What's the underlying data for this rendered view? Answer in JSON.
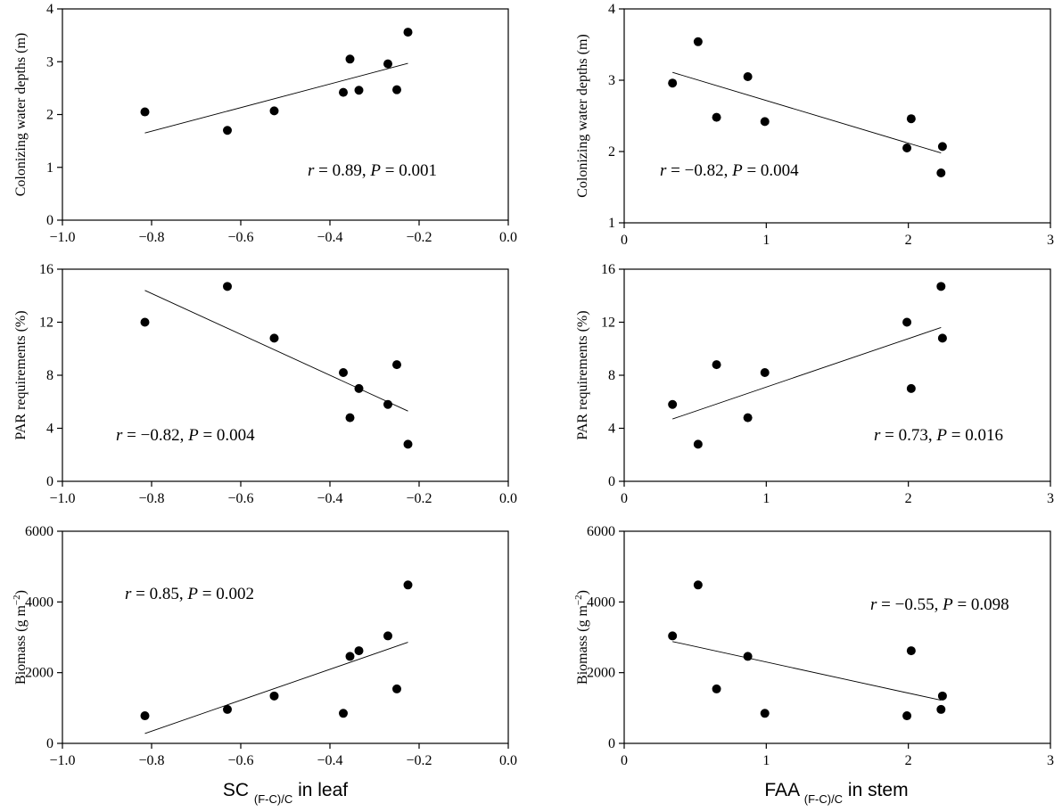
{
  "chart_data": [
    {
      "type": "scatter",
      "id": "p1",
      "ylabel": "Colonizing water depths (m)",
      "xlim": [
        -1.0,
        0.0
      ],
      "ylim": [
        0,
        4
      ],
      "xticks": [
        -1.0,
        -0.8,
        -0.6,
        -0.4,
        -0.2,
        0.0
      ],
      "yticks": [
        0,
        1,
        2,
        3,
        4
      ],
      "xtick_labels": [
        "−1.0",
        "−0.8",
        "−0.6",
        "−0.4",
        "−0.2",
        "0.0"
      ],
      "ytick_labels": [
        "0",
        "1",
        "2",
        "3",
        "4"
      ],
      "points": [
        [
          -0.815,
          2.05
        ],
        [
          -0.63,
          1.7
        ],
        [
          -0.525,
          2.07
        ],
        [
          -0.37,
          2.42
        ],
        [
          -0.355,
          3.05
        ],
        [
          -0.335,
          2.46
        ],
        [
          -0.27,
          2.96
        ],
        [
          -0.25,
          2.47
        ],
        [
          -0.225,
          3.56
        ]
      ],
      "fit_line": [
        [
          -0.815,
          1.65
        ],
        [
          -0.225,
          2.97
        ]
      ],
      "annotation": {
        "r_label": "r",
        "r_value": " = 0.89, ",
        "p_label": "P",
        "p_value": " = 0.001"
      }
    },
    {
      "type": "scatter",
      "id": "p2",
      "ylabel": "Colonizing water depths (m)",
      "xlim": [
        0,
        3
      ],
      "ylim": [
        1,
        4
      ],
      "xticks": [
        0,
        1,
        2,
        3
      ],
      "yticks": [
        1,
        2,
        3,
        4
      ],
      "xtick_labels": [
        "0",
        "1",
        "2",
        "3"
      ],
      "ytick_labels": [
        "1",
        "2",
        "3",
        "4"
      ],
      "points": [
        [
          0.34,
          2.96
        ],
        [
          0.52,
          3.54
        ],
        [
          0.65,
          2.48
        ],
        [
          0.87,
          3.05
        ],
        [
          0.99,
          2.42
        ],
        [
          1.99,
          2.05
        ],
        [
          2.02,
          2.46
        ],
        [
          2.24,
          2.07
        ],
        [
          2.23,
          1.7
        ]
      ],
      "fit_line": [
        [
          0.34,
          3.11
        ],
        [
          2.23,
          1.98
        ]
      ],
      "annotation": {
        "r_label": "r",
        "r_value": " = −0.82, ",
        "p_label": "P",
        "p_value": " = 0.004"
      }
    },
    {
      "type": "scatter",
      "id": "p3",
      "ylabel": "PAR requirements (%)",
      "xlim": [
        -1.0,
        0.0
      ],
      "ylim": [
        0,
        16
      ],
      "xticks": [
        -1.0,
        -0.8,
        -0.6,
        -0.4,
        -0.2,
        0.0
      ],
      "yticks": [
        0,
        4,
        8,
        12,
        16
      ],
      "xtick_labels": [
        "−1.0",
        "−0.8",
        "−0.6",
        "−0.4",
        "−0.2",
        "0.0"
      ],
      "ytick_labels": [
        "0",
        "4",
        "8",
        "12",
        "16"
      ],
      "points": [
        [
          -0.815,
          12.0
        ],
        [
          -0.63,
          14.7
        ],
        [
          -0.525,
          10.8
        ],
        [
          -0.37,
          8.2
        ],
        [
          -0.355,
          4.8
        ],
        [
          -0.335,
          7.0
        ],
        [
          -0.27,
          5.8
        ],
        [
          -0.25,
          8.8
        ],
        [
          -0.225,
          2.8
        ]
      ],
      "fit_line": [
        [
          -0.815,
          14.4
        ],
        [
          -0.225,
          5.3
        ]
      ],
      "annotation": {
        "r_label": "r",
        "r_value": " = −0.82, ",
        "p_label": "P",
        "p_value": " = 0.004"
      }
    },
    {
      "type": "scatter",
      "id": "p4",
      "ylabel": "PAR requirements (%)",
      "xlim": [
        0,
        3
      ],
      "ylim": [
        0,
        16
      ],
      "xticks": [
        0,
        1,
        2,
        3
      ],
      "yticks": [
        0,
        4,
        8,
        12,
        16
      ],
      "xtick_labels": [
        "0",
        "1",
        "2",
        "3"
      ],
      "ytick_labels": [
        "0",
        "4",
        "8",
        "12",
        "16"
      ],
      "points": [
        [
          0.34,
          5.8
        ],
        [
          0.52,
          2.8
        ],
        [
          0.65,
          8.8
        ],
        [
          0.87,
          4.8
        ],
        [
          0.99,
          8.2
        ],
        [
          1.99,
          12.0
        ],
        [
          2.02,
          7.0
        ],
        [
          2.23,
          14.7
        ],
        [
          2.24,
          10.8
        ]
      ],
      "fit_line": [
        [
          0.34,
          4.7
        ],
        [
          2.23,
          11.6
        ]
      ],
      "annotation": {
        "r_label": "r",
        "r_value": " = 0.73, ",
        "p_label": "P",
        "p_value": " = 0.016"
      }
    },
    {
      "type": "scatter",
      "id": "p5",
      "ylabel": "Biomass (g m",
      "ylabel_sup": "−2",
      "ylabel_end": ")",
      "xlabel": "SC",
      "xlabel_sub": "(F-C)/C",
      "xlabel_end": " in leaf",
      "xlim": [
        -1.0,
        0.0
      ],
      "ylim": [
        0,
        6000
      ],
      "xticks": [
        -1.0,
        -0.8,
        -0.6,
        -0.4,
        -0.2,
        0.0
      ],
      "yticks": [
        0,
        2000,
        4000,
        6000
      ],
      "xtick_labels": [
        "−1.0",
        "−0.8",
        "−0.6",
        "−0.4",
        "−0.2",
        "0.0"
      ],
      "ytick_labels": [
        "0",
        "2000",
        "4000",
        "6000"
      ],
      "points": [
        [
          -0.815,
          780
        ],
        [
          -0.63,
          960
        ],
        [
          -0.525,
          1340
        ],
        [
          -0.37,
          850
        ],
        [
          -0.355,
          2460
        ],
        [
          -0.335,
          2620
        ],
        [
          -0.27,
          3040
        ],
        [
          -0.25,
          1540
        ],
        [
          -0.225,
          4480
        ]
      ],
      "fit_line": [
        [
          -0.815,
          280
        ],
        [
          -0.225,
          2860
        ]
      ],
      "annotation": {
        "r_label": "r",
        "r_value": " = 0.85, ",
        "p_label": "P",
        "p_value": " = 0.002"
      }
    },
    {
      "type": "scatter",
      "id": "p6",
      "ylabel": "Biomass (g m",
      "ylabel_sup": "−2",
      "ylabel_end": ")",
      "xlabel": "FAA",
      "xlabel_sub": "(F-C)/C",
      "xlabel_end": " in stem",
      "xlim": [
        0,
        3
      ],
      "ylim": [
        0,
        6000
      ],
      "xticks": [
        0,
        1,
        2,
        3
      ],
      "yticks": [
        0,
        2000,
        4000,
        6000
      ],
      "xtick_labels": [
        "0",
        "1",
        "2",
        "3"
      ],
      "ytick_labels": [
        "0",
        "2000",
        "4000",
        "6000"
      ],
      "points": [
        [
          0.34,
          3040
        ],
        [
          0.52,
          4480
        ],
        [
          0.65,
          1540
        ],
        [
          0.87,
          2460
        ],
        [
          0.99,
          850
        ],
        [
          1.99,
          780
        ],
        [
          2.02,
          2620
        ],
        [
          2.24,
          1340
        ],
        [
          2.23,
          960
        ]
      ],
      "fit_line": [
        [
          0.34,
          2880
        ],
        [
          2.23,
          1220
        ]
      ],
      "annotation": {
        "r_label": "r",
        "r_value": " = −0.55, ",
        "p_label": "P",
        "p_value": " = 0.098"
      }
    }
  ]
}
